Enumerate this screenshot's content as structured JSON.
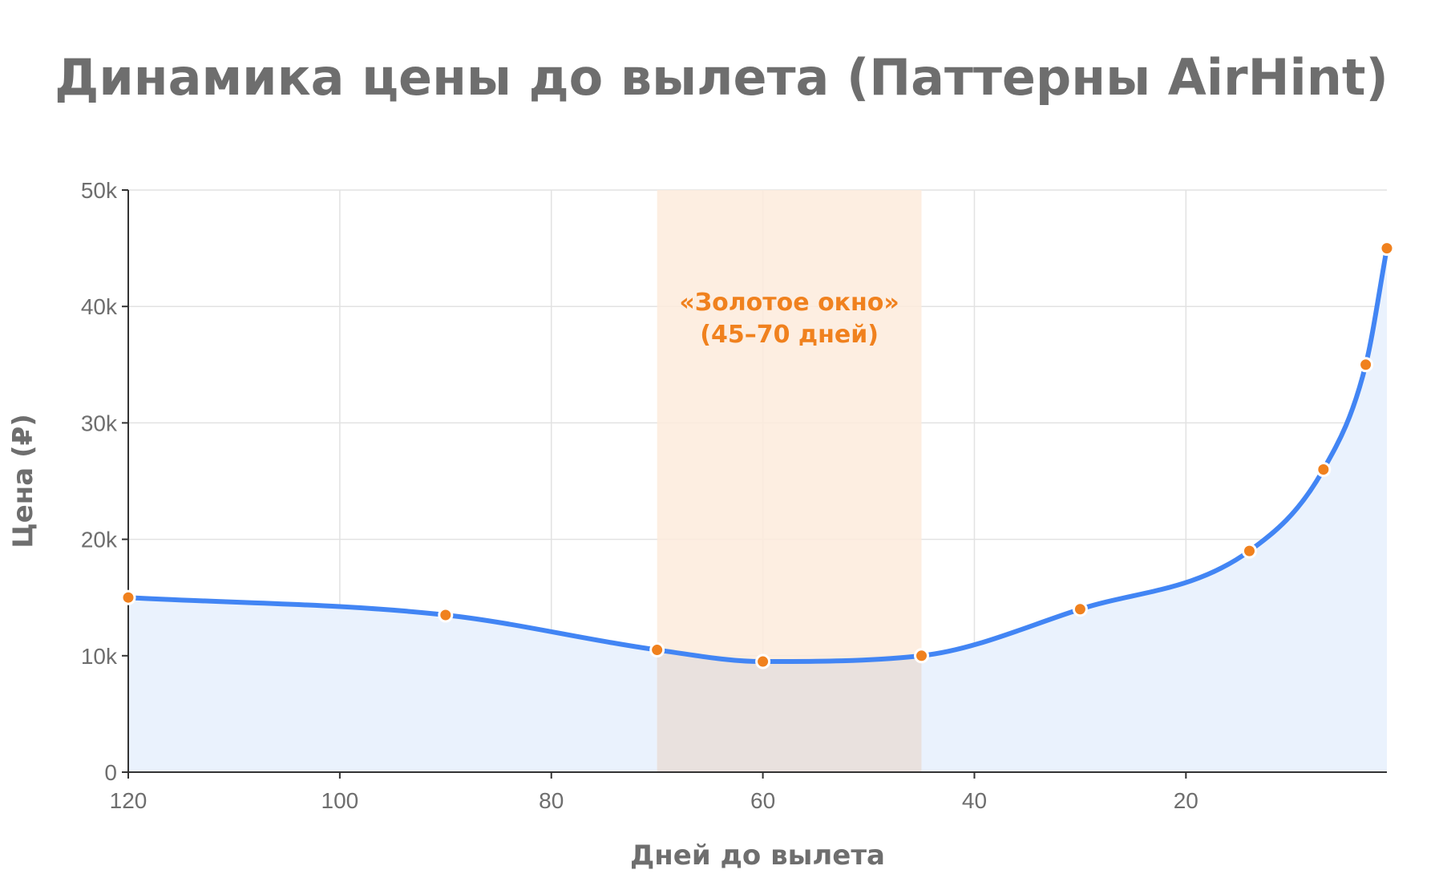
{
  "chart_data": {
    "type": "line",
    "title": "Динамика цены до вылета (Паттерны AirHint)",
    "xlabel": "Дней до вылета",
    "ylabel": "Цена (₽)",
    "x": [
      120,
      90,
      70,
      60,
      45,
      30,
      14,
      7,
      3,
      1
    ],
    "series": [
      {
        "values": [
          15000,
          13500,
          10500,
          9500,
          10000,
          14000,
          19000,
          26000,
          35000,
          45000
        ]
      }
    ],
    "xlim": [
      120,
      1
    ],
    "ylim": [
      0,
      50000
    ],
    "x_ticks": [
      120,
      100,
      80,
      60,
      40,
      20
    ],
    "x_tick_labels": [
      "120",
      "100",
      "80",
      "60",
      "40",
      "20"
    ],
    "y_ticks": [
      0,
      10000,
      20000,
      30000,
      40000,
      50000
    ],
    "y_tick_labels": [
      "0",
      "10k",
      "20k",
      "30k",
      "40k",
      "50k"
    ],
    "x_reversed": true,
    "grid": true,
    "area_fill": true,
    "highlight": {
      "x_from": 70,
      "x_to": 45,
      "label_line1": "«Золотое окно»",
      "label_line2": "(45–70 дней)"
    },
    "colors": {
      "line": "#4285f4",
      "area": "#eaf2fd",
      "marker": "#f0811e",
      "marker_stroke": "#ffffff",
      "highlight": "#fdebdc",
      "highlight_overlap": "#e9e1de",
      "annotation": "#f0811e",
      "text": "#6e6e6e"
    }
  }
}
